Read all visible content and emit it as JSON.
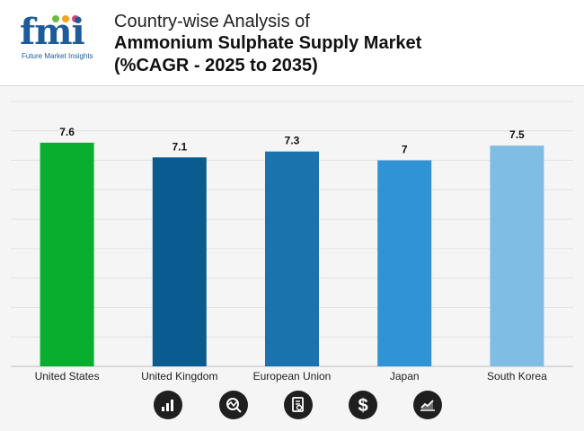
{
  "brand": {
    "logo_text": "fmi",
    "tagline": "Future Market Insights"
  },
  "title": {
    "line1": "Country-wise Analysis of",
    "line2": "Ammonium Sulphate Supply Market",
    "line3": "(%CAGR - 2025 to 2035)"
  },
  "chart_data": {
    "type": "bar",
    "categories": [
      "United States",
      "United Kingdom",
      "European Union",
      "Japan",
      "South Korea"
    ],
    "values": [
      7.6,
      7.1,
      7.3,
      7,
      7.5
    ],
    "value_labels": [
      "7.6",
      "7.1",
      "7.3",
      "7",
      "7.5"
    ],
    "colors": [
      "#0aae2e",
      "#0a5b8f",
      "#1b73ad",
      "#2f93d6",
      "#80bde5"
    ],
    "ylim": [
      0,
      9
    ],
    "grid": true,
    "legend": false
  },
  "footer_icons": [
    "bar-chart-icon",
    "trend-analysis-icon",
    "document-search-icon",
    "dollar-icon",
    "line-chart-icon"
  ]
}
